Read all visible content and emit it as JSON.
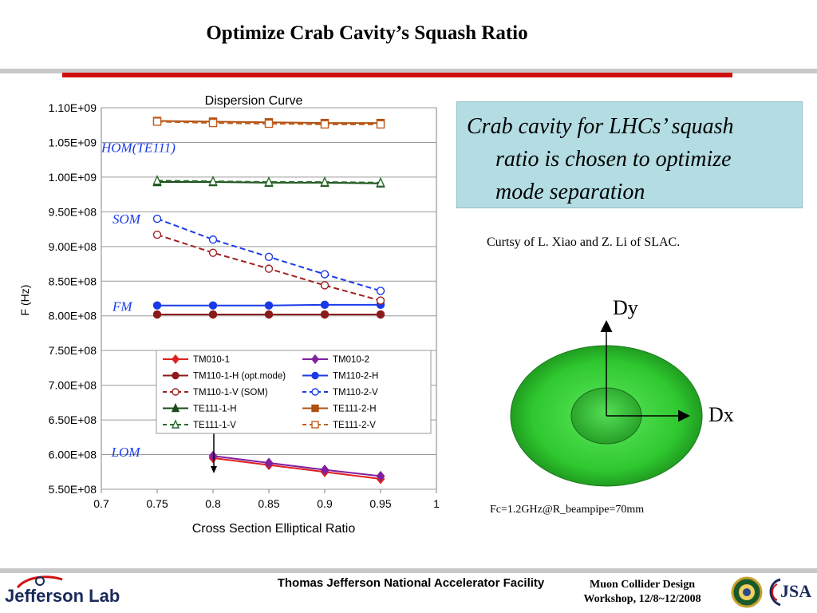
{
  "slide": {
    "title": "Optimize Crab Cavity’s Squash Ratio",
    "callout": {
      "line1": "Crab cavity for LHCs’ squash",
      "line2": "ratio is chosen to optimize",
      "line3": "mode separation"
    },
    "credit": "Curtsy of L. Xiao and Z. Li of SLAC.",
    "figure_labels": {
      "dy": "Dy",
      "dx": "Dx"
    },
    "fc_note": "Fc=1.2GHz@R_beampipe=70mm",
    "footer_center": "Thomas Jefferson National Accelerator Facility",
    "footer_right_line1": "Muon Collider Design",
    "footer_right_line2": "Workshop, 12/8~12/2008",
    "logo_text": "Jefferson Lab",
    "jsa_text": "JSA",
    "colors": {
      "accent_red": "#d01010",
      "callout_bg": "#b3dde3",
      "cavity_green": "#2fc82f"
    }
  },
  "chart_data": {
    "type": "line",
    "title": "Dispersion Curve",
    "xlabel": "Cross Section Elliptical Ratio",
    "ylabel": "F (Hz)",
    "xlim": [
      0.7,
      1.0
    ],
    "ylim": [
      550000000.0,
      1100000000.0
    ],
    "xticks": [
      "0.7",
      "0.75",
      "0.8",
      "0.85",
      "0.9",
      "0.95",
      "1"
    ],
    "yticks": [
      "5.50E+08",
      "6.00E+08",
      "6.50E+08",
      "7.00E+08",
      "7.50E+08",
      "8.00E+08",
      "8.50E+08",
      "9.00E+08",
      "9.50E+08",
      "1.00E+09",
      "1.05E+09",
      "1.10E+09"
    ],
    "grid": "horizontal",
    "legend_position": "center",
    "annotations": [
      {
        "text": "HOM(TE111)",
        "x": 0.7,
        "y": 1036000000.0
      },
      {
        "text": "SOM",
        "x": 0.71,
        "y": 933000000.0
      },
      {
        "text": "FM",
        "x": 0.71,
        "y": 807000000.0
      },
      {
        "text": "LOM",
        "x": 0.709,
        "y": 597000000.0
      }
    ],
    "series": [
      {
        "name": "TM010-1",
        "color": "#e02020",
        "marker": "diamond",
        "filled": true,
        "dash": false,
        "x": [
          0.8,
          0.85,
          0.9,
          0.95
        ],
        "y": [
          595000000.0,
          585000000.0,
          575000000.0,
          565000000.0
        ]
      },
      {
        "name": "TM010-2",
        "color": "#8020a0",
        "marker": "diamond",
        "filled": true,
        "dash": false,
        "x": [
          0.8,
          0.85,
          0.9,
          0.95
        ],
        "y": [
          598000000.0,
          588000000.0,
          578000000.0,
          569000000.0
        ]
      },
      {
        "name": "TM110-1-H (opt.mode)",
        "color": "#8b1a1a",
        "marker": "circle",
        "filled": true,
        "dash": false,
        "x": [
          0.75,
          0.8,
          0.85,
          0.9,
          0.95
        ],
        "y": [
          802000000.0,
          802000000.0,
          802000000.0,
          802000000.0,
          802000000.0
        ]
      },
      {
        "name": "TM110-2-H",
        "color": "#1a3ae8",
        "marker": "circle",
        "filled": true,
        "dash": false,
        "x": [
          0.75,
          0.8,
          0.85,
          0.9,
          0.95
        ],
        "y": [
          815000000.0,
          815000000.0,
          815000000.0,
          816000000.0,
          816000000.0
        ]
      },
      {
        "name": "TM110-1-V (SOM)",
        "color": "#a02020",
        "marker": "circle",
        "filled": false,
        "dash": true,
        "x": [
          0.75,
          0.8,
          0.85,
          0.9,
          0.95
        ],
        "y": [
          917000000.0,
          891000000.0,
          868000000.0,
          844000000.0,
          822000000.0
        ]
      },
      {
        "name": "TM110-2-V",
        "color": "#1a3ae8",
        "marker": "circle",
        "filled": false,
        "dash": true,
        "x": [
          0.75,
          0.8,
          0.85,
          0.9,
          0.95
        ],
        "y": [
          940000000.0,
          910000000.0,
          885000000.0,
          860000000.0,
          836000000.0
        ]
      },
      {
        "name": "TE111-1-H",
        "color": "#1a4a1a",
        "marker": "triangle",
        "filled": true,
        "dash": false,
        "x": [
          0.75,
          0.8,
          0.85,
          0.9,
          0.95
        ],
        "y": [
          993000000.0,
          993000000.0,
          992000000.0,
          992000000.0,
          991000000.0
        ]
      },
      {
        "name": "TE111-2-H",
        "color": "#b05010",
        "marker": "square",
        "filled": true,
        "dash": false,
        "x": [
          0.75,
          0.8,
          0.85,
          0.9,
          0.95
        ],
        "y": [
          1081000000.0,
          1080000000.0,
          1079000000.0,
          1078000000.0,
          1078000000.0
        ]
      },
      {
        "name": "TE111-1-V",
        "color": "#2a6a2a",
        "marker": "triangle",
        "filled": false,
        "dash": true,
        "x": [
          0.75,
          0.8,
          0.85,
          0.9,
          0.95
        ],
        "y": [
          995000000.0,
          994000000.0,
          993000000.0,
          993000000.0,
          992000000.0
        ]
      },
      {
        "name": "TE111-2-V",
        "color": "#c06020",
        "marker": "square",
        "filled": false,
        "dash": true,
        "x": [
          0.75,
          0.8,
          0.85,
          0.9,
          0.95
        ],
        "y": [
          1080000000.0,
          1078000000.0,
          1077000000.0,
          1076000000.0,
          1076000000.0
        ]
      }
    ]
  }
}
